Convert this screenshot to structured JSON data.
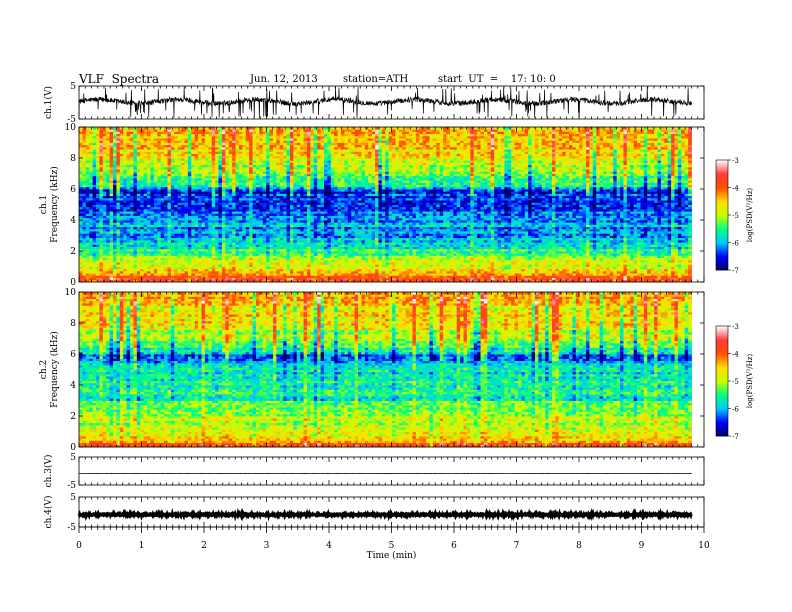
{
  "header": {
    "title": "VLF  Spectra",
    "date": "Jun. 12, 2013",
    "station": "station=ATH",
    "start": "start  UT  =    17: 10: 0"
  },
  "chart_data": {
    "type": "heatmap",
    "xlabel": "Time  (min)",
    "xlim": [
      0,
      10
    ],
    "x_ticks": [
      "0",
      "1",
      "2",
      "3",
      "4",
      "5",
      "6",
      "7",
      "8",
      "9",
      "10"
    ],
    "data_end_min": 9.8,
    "panels": [
      {
        "name": "ch.1",
        "kind": "waveform",
        "ylabel": "ch.1(V)",
        "ylim": [
          -5,
          5
        ],
        "y_ticks": [
          "5",
          "-5"
        ],
        "trace": "noisy signal near 0 V with frequent spikes"
      },
      {
        "name": "ch.1",
        "kind": "spectrogram",
        "ylabel": "ch.1\nFrequency  (kHz)",
        "ylabel_channel": "ch.1",
        "ylabel_axis": "Frequency  (kHz)",
        "ylim": [
          0,
          10
        ],
        "y_ticks": [
          "0",
          "2",
          "4",
          "6",
          "8",
          "10"
        ],
        "colorbar": {
          "label": "log(PSD(V²/Hz)",
          "range": [
            -7,
            -3
          ],
          "ticks": [
            "-3",
            "-4",
            "-5",
            "-6",
            "-7"
          ],
          "colors": [
            "#000064",
            "#0000ff",
            "#00c8ff",
            "#00ff80",
            "#c8ff00",
            "#ffdc00",
            "#ff5000",
            "#ff3c3c",
            "#ffffff"
          ]
        },
        "band_profile_kHz_log": [
          [
            0.0,
            -3.6
          ],
          [
            0.3,
            -3.9
          ],
          [
            0.8,
            -4.5
          ],
          [
            1.5,
            -5.2
          ],
          [
            2.2,
            -5.5
          ],
          [
            3.0,
            -6.0
          ],
          [
            4.0,
            -6.1
          ],
          [
            5.0,
            -6.3
          ],
          [
            5.8,
            -6.5
          ],
          [
            6.3,
            -5.6
          ],
          [
            7.0,
            -5.2
          ],
          [
            8.0,
            -4.7
          ],
          [
            9.0,
            -4.4
          ],
          [
            10.0,
            -4.3
          ]
        ]
      },
      {
        "name": "ch.2",
        "kind": "spectrogram",
        "ylabel": "ch.2\nFrequency  (kHz)",
        "ylabel_channel": "ch.2",
        "ylabel_axis": "Frequency  (kHz)",
        "ylim": [
          0,
          10
        ],
        "y_ticks": [
          "0",
          "2",
          "4",
          "6",
          "8",
          "10"
        ],
        "colorbar": {
          "label": "log(PSD(V²/Hz)",
          "range": [
            -7,
            -3
          ],
          "ticks": [
            "-3",
            "-4",
            "-5",
            "-6",
            "-7"
          ],
          "colors": [
            "#000064",
            "#0000ff",
            "#00c8ff",
            "#00ff80",
            "#c8ff00",
            "#ffdc00",
            "#ff5000",
            "#ff3c3c",
            "#ffffff"
          ]
        },
        "band_profile_kHz_log": [
          [
            0.0,
            -3.8
          ],
          [
            0.5,
            -4.4
          ],
          [
            1.0,
            -4.8
          ],
          [
            2.0,
            -5.0
          ],
          [
            2.6,
            -5.4
          ],
          [
            3.5,
            -5.6
          ],
          [
            4.5,
            -5.6
          ],
          [
            5.2,
            -5.8
          ],
          [
            5.8,
            -6.4
          ],
          [
            6.2,
            -5.6
          ],
          [
            7.0,
            -5.1
          ],
          [
            8.0,
            -4.7
          ],
          [
            9.0,
            -4.5
          ],
          [
            10.0,
            -4.4
          ]
        ]
      },
      {
        "name": "ch.3",
        "kind": "waveform",
        "ylabel": "ch.3(V)",
        "ylim": [
          -5,
          5
        ],
        "y_ticks": [
          "5",
          "-5"
        ],
        "trace": "nearly flat line slightly below 0 V"
      },
      {
        "name": "ch.4",
        "kind": "waveform",
        "ylabel": "ch.4(V)",
        "ylim": [
          -5,
          5
        ],
        "y_ticks": [
          "5",
          "-5"
        ],
        "trace": "thick flat line slightly below 0 V"
      }
    ]
  }
}
